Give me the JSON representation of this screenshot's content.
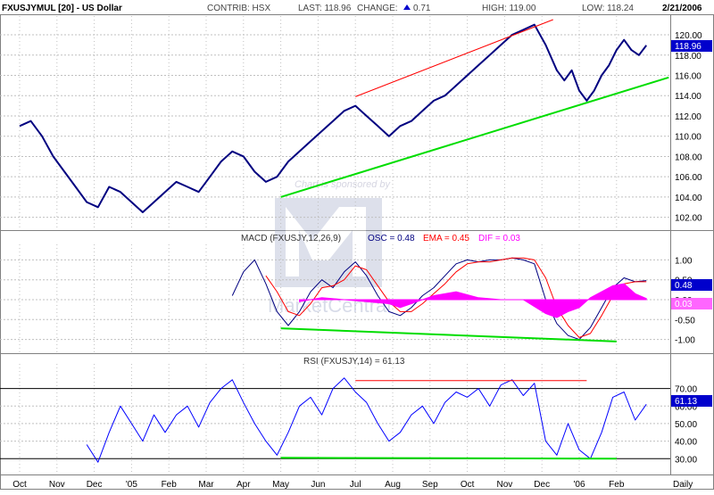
{
  "header": {
    "symbol": "FXUSJYMUL [20] - US Dollar",
    "contrib": "CONTRIB: HSX",
    "last": "LAST: 118.96",
    "change_label": "CHANGE:",
    "change_value": "0.71",
    "high": "HIGH: 119.00",
    "low": "LOW: 118.24",
    "date": "2/21/2006"
  },
  "watermark": {
    "text": "Chart is sponsored by",
    "brand": "MarketCentral"
  },
  "x_axis": {
    "labels": [
      "Oct",
      "Nov",
      "Dec",
      "'05",
      "Feb",
      "Mar",
      "Apr",
      "May",
      "Jun",
      "Jul",
      "Aug",
      "Sep",
      "Oct",
      "Nov",
      "Dec",
      "'06",
      "Feb"
    ],
    "period": "Daily"
  },
  "colors": {
    "price": "#000080",
    "grid": "#c0c0c0",
    "up_trend": "#00dd00",
    "resistance": "#ff0000",
    "macd_line": "#000080",
    "ema_line": "#ff0000",
    "histogram": "#ff00ff",
    "rsi_line": "#0000ff",
    "last_tag": "#0000cc"
  },
  "chart_data": [
    {
      "type": "line",
      "panel": "price",
      "x_unit": "month index (0 = Oct 2004)",
      "ylim": [
        101,
        121.5
      ],
      "yticks": [
        "102.00",
        "104.00",
        "106.00",
        "108.00",
        "110.00",
        "112.00",
        "114.00",
        "116.00",
        "118.00",
        "120.00"
      ],
      "last_label": "118.96",
      "series": [
        {
          "x": [
            0,
            0.3,
            0.6,
            0.9,
            1.2,
            1.5,
            1.8,
            2.1,
            2.4,
            2.7,
            3.0,
            3.3,
            3.6,
            3.9,
            4.2,
            4.5,
            4.8,
            5.1,
            5.4,
            5.7,
            6.0,
            6.3,
            6.6,
            6.9,
            7.2,
            7.5,
            7.8,
            8.1,
            8.4,
            8.7,
            9.0,
            9.3,
            9.6,
            9.9,
            10.2,
            10.5,
            10.8,
            11.1,
            11.4,
            11.7,
            12.0,
            12.3,
            12.6,
            12.9,
            13.2,
            13.5,
            13.8,
            14.1,
            14.4,
            14.6,
            14.8,
            15.0,
            15.2,
            15.4,
            15.6,
            15.8,
            16.0,
            16.2,
            16.4,
            16.6,
            16.8
          ],
          "values": [
            111.0,
            111.5,
            110.0,
            108.0,
            106.5,
            105.0,
            103.5,
            103.0,
            105.0,
            104.5,
            103.5,
            102.5,
            103.5,
            104.5,
            105.5,
            105.0,
            104.5,
            106.0,
            107.5,
            108.5,
            108.0,
            106.5,
            105.5,
            106.0,
            107.5,
            108.5,
            109.5,
            110.5,
            111.5,
            112.5,
            113.0,
            112.0,
            111.0,
            110.0,
            111.0,
            111.5,
            112.5,
            113.5,
            114.0,
            115.0,
            116.0,
            117.0,
            118.0,
            119.0,
            120.0,
            120.5,
            121.0,
            119.0,
            116.5,
            115.5,
            116.5,
            114.5,
            113.5,
            114.5,
            116.0,
            117.0,
            118.5,
            119.5,
            118.5,
            118.0,
            118.96
          ]
        }
      ],
      "annotations": [
        {
          "name": "support-trendline",
          "x": [
            7.0,
            17.4
          ],
          "y": [
            104.0,
            115.8
          ]
        },
        {
          "name": "resistance-trendline",
          "x": [
            9.0,
            14.3
          ],
          "y": [
            113.9,
            121.5
          ]
        }
      ]
    },
    {
      "type": "line",
      "panel": "macd",
      "title": "MACD (FXUSJY,12,26,9)",
      "legend": [
        {
          "label": "OSC = 0.48",
          "color": "#000080"
        },
        {
          "label": "EMA = 0.45",
          "color": "#ff0000"
        },
        {
          "label": "DIF = 0.03",
          "color": "#ff00ff"
        }
      ],
      "ylim": [
        -1.3,
        1.3
      ],
      "yticks": [
        "1.00",
        "0.50",
        "0.00",
        "-0.50",
        "-1.00"
      ],
      "tag_macd": "0.48",
      "tag_dif": "0.03",
      "series": [
        {
          "name": "OSC",
          "x": [
            5.7,
            6.0,
            6.3,
            6.6,
            6.9,
            7.2,
            7.5,
            7.8,
            8.1,
            8.4,
            8.7,
            9.0,
            9.3,
            9.6,
            9.9,
            10.2,
            10.5,
            10.8,
            11.1,
            11.4,
            11.7,
            12.0,
            12.3,
            12.6,
            12.9,
            13.2,
            13.5,
            13.8,
            14.1,
            14.4,
            14.7,
            15.0,
            15.3,
            15.6,
            15.9,
            16.2,
            16.5,
            16.8
          ],
          "values": [
            0.1,
            0.7,
            1.0,
            0.4,
            -0.3,
            -0.65,
            -0.3,
            0.2,
            0.5,
            0.3,
            0.7,
            0.95,
            0.6,
            0.1,
            -0.3,
            -0.4,
            -0.2,
            0.1,
            0.3,
            0.6,
            0.9,
            1.0,
            0.95,
            1.0,
            1.0,
            1.05,
            1.0,
            0.9,
            0.0,
            -0.6,
            -0.9,
            -1.0,
            -0.7,
            -0.2,
            0.3,
            0.55,
            0.45,
            0.48
          ]
        },
        {
          "name": "EMA",
          "x": [
            6.6,
            6.9,
            7.2,
            7.5,
            7.8,
            8.1,
            8.4,
            8.7,
            9.0,
            9.3,
            9.6,
            9.9,
            10.2,
            10.5,
            10.8,
            11.1,
            11.4,
            11.7,
            12.0,
            12.3,
            12.6,
            12.9,
            13.2,
            13.5,
            13.8,
            14.1,
            14.4,
            14.7,
            15.0,
            15.3,
            15.6,
            15.9,
            16.2,
            16.5,
            16.8
          ],
          "values": [
            0.6,
            0.2,
            -0.3,
            -0.4,
            -0.1,
            0.3,
            0.35,
            0.5,
            0.85,
            0.75,
            0.35,
            -0.05,
            -0.3,
            -0.3,
            -0.1,
            0.15,
            0.4,
            0.7,
            0.9,
            0.95,
            0.95,
            1.0,
            1.05,
            1.05,
            1.0,
            0.55,
            -0.2,
            -0.65,
            -0.95,
            -0.85,
            -0.4,
            0.1,
            0.4,
            0.45,
            0.45
          ]
        },
        {
          "name": "DIF",
          "x": [
            7.5,
            8.1,
            8.7,
            9.3,
            9.9,
            10.2,
            10.5,
            11.1,
            11.7,
            12.3,
            12.9,
            13.5,
            14.1,
            14.4,
            14.7,
            15.0,
            15.3,
            15.6,
            15.9,
            16.2,
            16.5,
            16.8
          ],
          "values": [
            -0.05,
            0.05,
            0.0,
            -0.05,
            -0.1,
            -0.2,
            -0.1,
            0.1,
            0.2,
            0.05,
            0.0,
            0.0,
            -0.35,
            -0.45,
            -0.3,
            -0.2,
            0.05,
            0.2,
            0.35,
            0.4,
            0.15,
            0.03
          ]
        }
      ],
      "annotations": [
        {
          "name": "macd-support-line",
          "x": [
            7.0,
            16.0
          ],
          "y": [
            -0.72,
            -1.05
          ]
        }
      ]
    },
    {
      "type": "line",
      "panel": "rsi",
      "title": "RSI (FXUSJY,14) = 61.13",
      "ylim": [
        22,
        82
      ],
      "yticks": [
        "70.00",
        "60.00",
        "50.00",
        "40.00",
        "30.00"
      ],
      "reference_lines": [
        70,
        30
      ],
      "tag": "61.13",
      "series": [
        {
          "name": "RSI",
          "x": [
            1.8,
            2.1,
            2.4,
            2.7,
            3.0,
            3.3,
            3.6,
            3.9,
            4.2,
            4.5,
            4.8,
            5.1,
            5.4,
            5.7,
            6.0,
            6.3,
            6.6,
            6.9,
            7.2,
            7.5,
            7.8,
            8.1,
            8.4,
            8.7,
            9.0,
            9.3,
            9.6,
            9.9,
            10.2,
            10.5,
            10.8,
            11.1,
            11.4,
            11.7,
            12.0,
            12.3,
            12.6,
            12.9,
            13.2,
            13.5,
            13.8,
            14.1,
            14.4,
            14.7,
            15.0,
            15.3,
            15.6,
            15.9,
            16.2,
            16.5,
            16.8
          ],
          "values": [
            38,
            28,
            45,
            60,
            50,
            40,
            55,
            45,
            55,
            60,
            48,
            62,
            70,
            75,
            62,
            50,
            40,
            32,
            45,
            60,
            65,
            55,
            70,
            76,
            68,
            62,
            50,
            40,
            45,
            55,
            60,
            50,
            62,
            68,
            65,
            70,
            60,
            72,
            75,
            66,
            73,
            40,
            32,
            50,
            35,
            30,
            45,
            65,
            68,
            52,
            61
          ]
        }
      ],
      "annotations": [
        {
          "name": "rsi-support-line",
          "x": [
            7.0,
            16.0
          ],
          "y": [
            30.5,
            30.0
          ]
        },
        {
          "name": "rsi-resistance-line",
          "x": [
            9.0,
            15.2
          ],
          "y": [
            74.5,
            74.5
          ]
        }
      ]
    }
  ]
}
